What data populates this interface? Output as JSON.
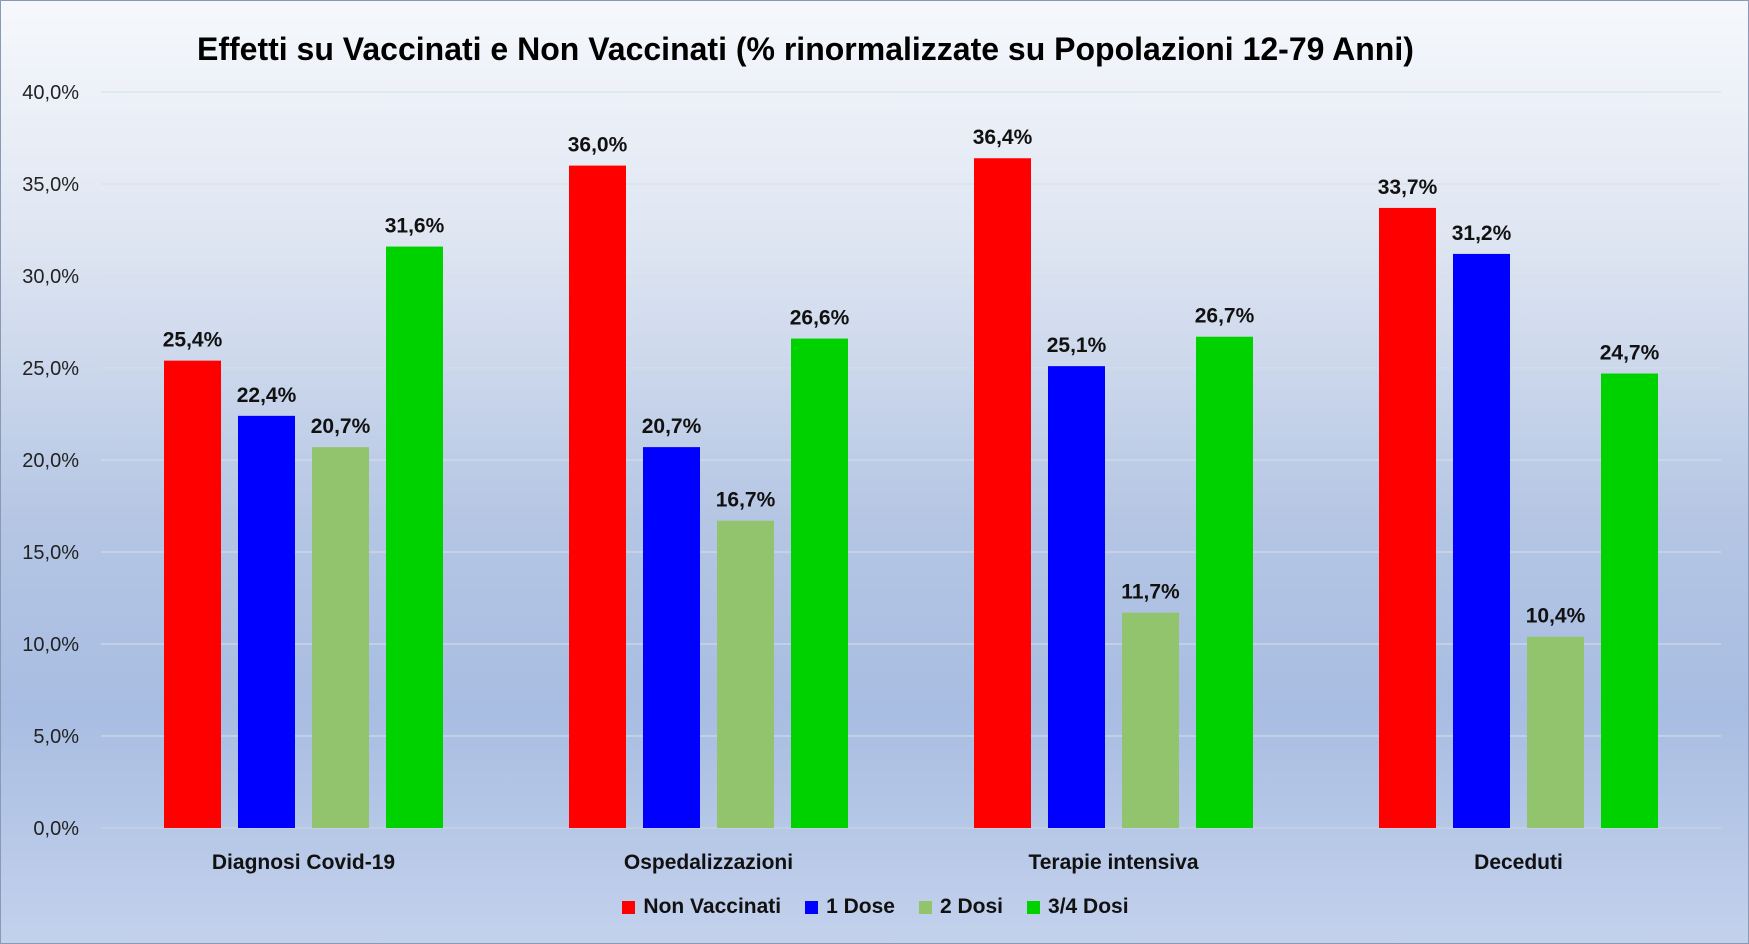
{
  "chart_data": {
    "type": "bar",
    "title": "Effetti su Vaccinati e Non Vaccinati (% rinormalizzate su Popolazioni 12-79 Anni)",
    "xlabel": "",
    "ylabel": "",
    "ylim": [
      0,
      40
    ],
    "yticks": [
      "0,0%",
      "5,0%",
      "10,0%",
      "15,0%",
      "20,0%",
      "25,0%",
      "30,0%",
      "35,0%",
      "40,0%"
    ],
    "grid": true,
    "legend_position": "bottom",
    "categories": [
      "Diagnosi Covid-19",
      "Ospedalizzazioni",
      "Terapie intensiva",
      "Deceduti"
    ],
    "series": [
      {
        "name": "Non Vaccinati",
        "color": "#ff0000",
        "values": [
          25.4,
          36.0,
          36.4,
          33.7
        ],
        "labels": [
          "25,4%",
          "36,0%",
          "36,4%",
          "33,7%"
        ]
      },
      {
        "name": "1 Dose",
        "color": "#0000ff",
        "values": [
          22.4,
          20.7,
          25.1,
          31.2
        ],
        "labels": [
          "22,4%",
          "20,7%",
          "25,1%",
          "31,2%"
        ]
      },
      {
        "name": "2 Dosi",
        "color": "#92c46d",
        "values": [
          20.7,
          16.7,
          11.7,
          10.4
        ],
        "labels": [
          "20,7%",
          "16,7%",
          "11,7%",
          "10,4%"
        ]
      },
      {
        "name": "3/4 Dosi",
        "color": "#00d200",
        "values": [
          31.6,
          26.6,
          26.7,
          24.7
        ],
        "labels": [
          "31,6%",
          "26,6%",
          "26,7%",
          "24,7%"
        ]
      }
    ]
  }
}
